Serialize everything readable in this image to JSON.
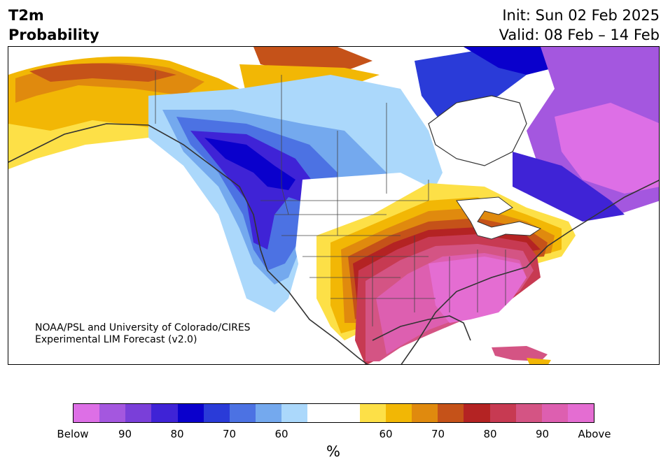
{
  "title": {
    "variable": "T2m",
    "subtitle": "Probability",
    "init": "Init: Sun 02 Feb 2025",
    "valid": "Valid: 08 Feb – 14 Feb"
  },
  "credit": {
    "line1": "NOAA/PSL and University of Colorado/CIRES",
    "line2": "Experimental LIM Forecast (v2.0)"
  },
  "colorbar": {
    "unit": "%",
    "colors": [
      "#dd6fe6",
      "#a457df",
      "#7a3fd9",
      "#3f23d6",
      "#0a00cc",
      "#2a3bd8",
      "#4c72e3",
      "#74a9ee",
      "#abd8fb",
      "#ffffff",
      "#ffffff",
      "#fde047",
      "#f2b705",
      "#e08a0e",
      "#c55219",
      "#b42323",
      "#c73a52",
      "#d45484",
      "#dd5fb0",
      "#e46dd2"
    ],
    "labels": [
      "Below",
      "90",
      "80",
      "70",
      "60",
      "60",
      "70",
      "80",
      "90",
      "Above"
    ],
    "label_positions": [
      0,
      2,
      4,
      6,
      8,
      12,
      14,
      16,
      18,
      20
    ]
  },
  "map": {
    "region": "North America",
    "legend_colors": {
      "below_strong": "#0a00cc",
      "below_mid": "#4c72e3",
      "below_light": "#abd8fb",
      "above_light": "#fde047",
      "above_mid": "#e08a0e",
      "above_strong": "#b42323",
      "above_extreme": "#dd5fb0",
      "below_extreme": "#a457df"
    }
  }
}
